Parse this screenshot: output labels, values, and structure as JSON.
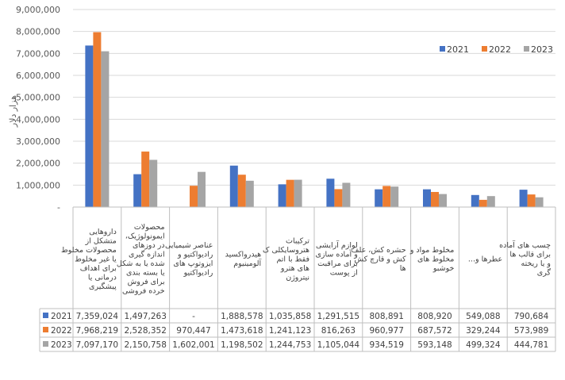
{
  "chart_data": {
    "type": "bar",
    "ylabel": "هزار دلار",
    "ylim": [
      0,
      9000000
    ],
    "yticks": [
      0,
      1000000,
      2000000,
      3000000,
      4000000,
      5000000,
      6000000,
      7000000,
      8000000,
      9000000
    ],
    "ytick_labels": [
      "-",
      "1,000,000",
      "2,000,000",
      "3,000,000",
      "4,000,000",
      "5,000,000",
      "6,000,000",
      "7,000,000",
      "8,000,000",
      "9,000,000"
    ],
    "grid": true,
    "legend_position": "top-right",
    "categories": [
      "داروهایی متشکل از محصولات مخلوط یا غیر مخلوط برای اهداف درمانی یا پیشگیری",
      "محصولات ایمونولوژیک، در دوزهای اندازه گیری شده یا به شکل یا بسته بندی برای فروش خرده فروشی",
      "عناصر شیمیایی رادیواکتیو و ایزوتوپ های رادیواکتیو",
      "هیدرواکسید آلومینیوم",
      "ترکیبات هتروسایکلی ک فقط با اتم های هترو نیتروژن",
      "لوازم آرایشی و آماده سازی برای مراقبت از پوست",
      "حشره کش، علف کش و قارچ کش ها",
      "مخلوط مواد و مخلوط های خوشبو",
      "عطرها و...",
      "چسب های آماده برای قالب ها و یا ریخته گری"
    ],
    "series": [
      {
        "name": "2021",
        "color": "#4472C4",
        "values": [
          7359024,
          1497263,
          null,
          1888578,
          1035858,
          1291515,
          808891,
          808920,
          549088,
          790684
        ],
        "labels": [
          "7,359,024",
          "1,497,263",
          "-",
          "1,888,578",
          "1,035,858",
          "1,291,515",
          "808,891",
          "808,920",
          "549,088",
          "790,684"
        ]
      },
      {
        "name": "2022",
        "color": "#ED7D31",
        "values": [
          7968219,
          2528352,
          970447,
          1473618,
          1241123,
          816263,
          960977,
          687572,
          329244,
          573989
        ],
        "labels": [
          "7,968,219",
          "2,528,352",
          "970,447",
          "1,473,618",
          "1,241,123",
          "816,263",
          "960,977",
          "687,572",
          "329,244",
          "573,989"
        ]
      },
      {
        "name": "2023",
        "color": "#A5A5A5",
        "values": [
          7097170,
          2150758,
          1602001,
          1198502,
          1244753,
          1105044,
          934519,
          593148,
          499324,
          444781
        ],
        "labels": [
          "7,097,170",
          "2,150,758",
          "1,602,001",
          "1,198,502",
          "1,244,753",
          "1,105,044",
          "934,519",
          "593,148",
          "499,324",
          "444,781"
        ]
      }
    ]
  }
}
